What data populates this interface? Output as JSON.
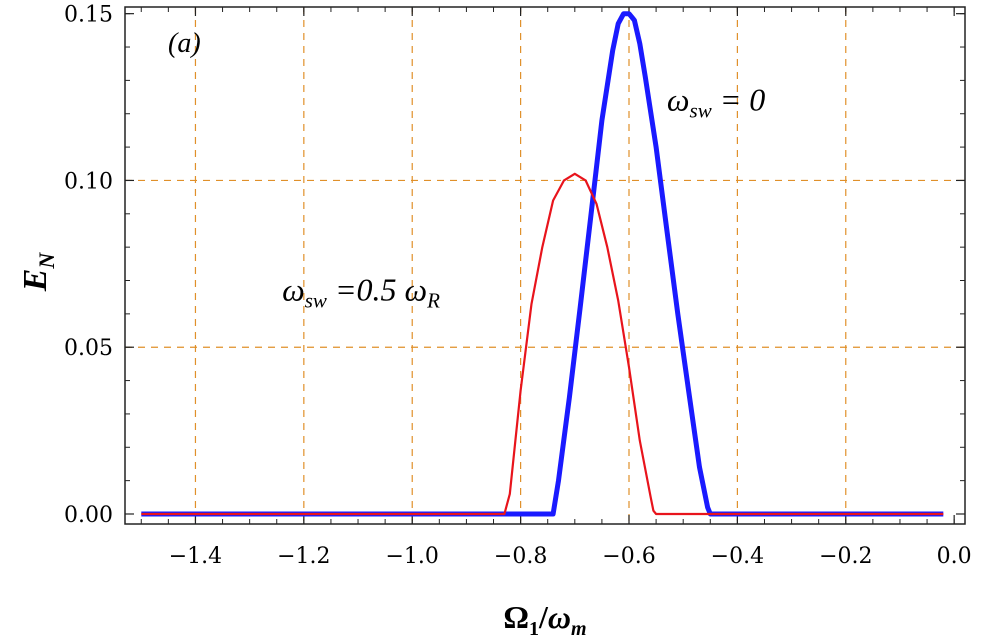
{
  "chart_data": {
    "type": "line",
    "panel_label": "(a)",
    "xlabel": {
      "main": "Ω",
      "main_sub": "1",
      "sep": "/",
      "denom": "ω",
      "denom_sub": "m"
    },
    "ylabel": {
      "main": "E",
      "sub": "N"
    },
    "xlim": [
      -1.53,
      0.02
    ],
    "ylim": [
      -0.003,
      0.152
    ],
    "x_ticks": [
      -1.4,
      -1.2,
      -1.0,
      -0.8,
      -0.6,
      -0.4,
      -0.2,
      0.0
    ],
    "x_tick_labels": [
      "−1.4",
      "−1.2",
      "−1.0",
      "−0.8",
      "−0.6",
      "−0.4",
      "−0.2",
      "0.0"
    ],
    "y_ticks": [
      0.0,
      0.05,
      0.1,
      0.15
    ],
    "y_tick_labels": [
      "0.00",
      "0.05",
      "0.10",
      "0.15"
    ],
    "grid": {
      "vertical": [
        -1.4,
        -1.2,
        -1.0,
        -0.8,
        -0.6,
        -0.4,
        -0.2
      ],
      "horizontal": [
        0.05,
        0.1
      ],
      "color": "#e0902a",
      "style": "dashed"
    },
    "series": [
      {
        "name": "ω_sw = 0",
        "color": "#1a1aff",
        "width": 5,
        "x": [
          -1.5,
          -0.74,
          -0.73,
          -0.71,
          -0.69,
          -0.67,
          -0.65,
          -0.63,
          -0.62,
          -0.61,
          -0.6,
          -0.59,
          -0.58,
          -0.57,
          -0.55,
          -0.53,
          -0.51,
          -0.49,
          -0.47,
          -0.455,
          -0.45,
          -0.02
        ],
        "y": [
          0.0,
          0.0,
          0.01,
          0.035,
          0.062,
          0.09,
          0.118,
          0.139,
          0.147,
          0.15,
          0.15,
          0.148,
          0.141,
          0.131,
          0.11,
          0.085,
          0.06,
          0.037,
          0.014,
          0.002,
          0.0,
          0.0
        ]
      },
      {
        "name": "ω_sw = 0.5 ω_R",
        "color": "#e8141c",
        "width": 2.2,
        "x": [
          -1.5,
          -0.83,
          -0.82,
          -0.8,
          -0.78,
          -0.76,
          -0.74,
          -0.72,
          -0.7,
          -0.68,
          -0.66,
          -0.64,
          -0.62,
          -0.6,
          -0.58,
          -0.56,
          -0.555,
          -0.55,
          -0.02
        ],
        "y": [
          0.0,
          0.0,
          0.006,
          0.037,
          0.063,
          0.08,
          0.094,
          0.1,
          0.102,
          0.1,
          0.093,
          0.08,
          0.064,
          0.044,
          0.022,
          0.005,
          0.001,
          0.0,
          0.0
        ]
      }
    ],
    "annotations": [
      {
        "series_index": 0,
        "at_x": -0.53,
        "at_y": 0.121,
        "sym": "ω",
        "sub": "sw",
        "rest": " = 0",
        "sub2": ""
      },
      {
        "series_index": 1,
        "at_x": -1.24,
        "at_y": 0.064,
        "sym": "ω",
        "sub": "sw",
        "rest": " =0.5 ω",
        "sub2": "R"
      }
    ]
  }
}
